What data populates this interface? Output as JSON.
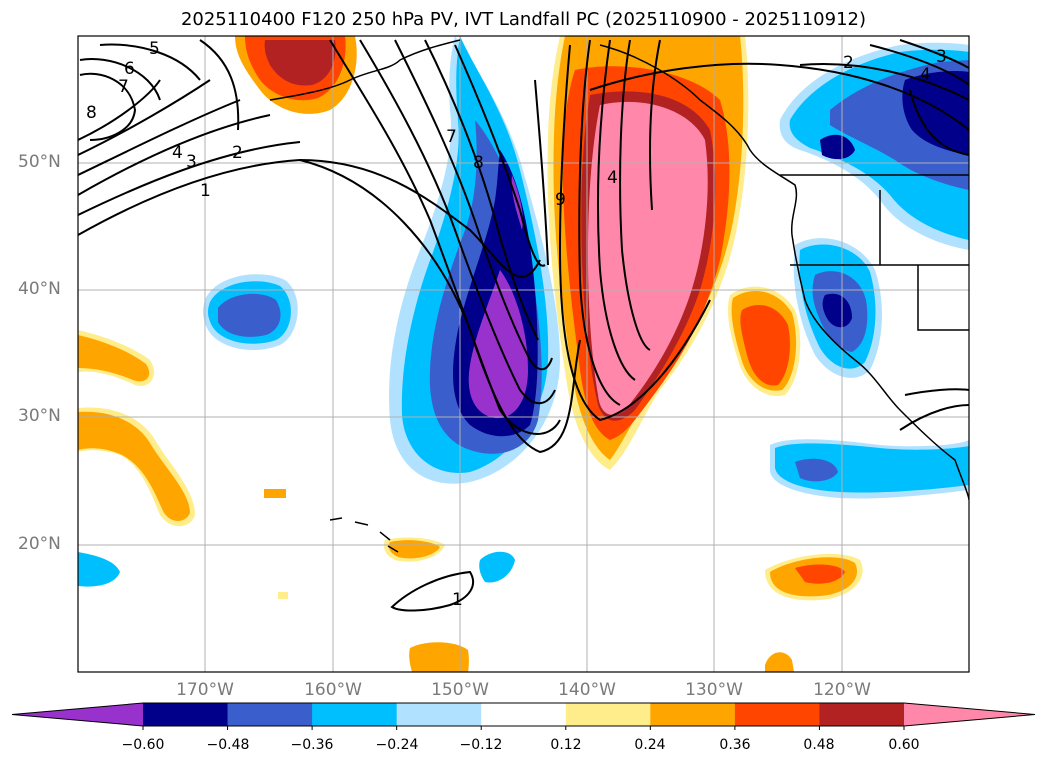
{
  "title": "2025110400 F120 250 hPa PV, IVT Landfall PC (2025110900 - 2025110912)",
  "lat_labels": [
    "50°N",
    "40°N",
    "30°N",
    "20°N"
  ],
  "lon_labels": [
    "170°W",
    "160°W",
    "150°W",
    "140°W",
    "130°W",
    "120°W"
  ],
  "contour_labels": [
    "5",
    "6",
    "7",
    "8",
    "4",
    "3",
    "2",
    "1",
    "7",
    "8",
    "9",
    "4",
    "2",
    "3",
    "4",
    "1"
  ],
  "colorbar": {
    "colors": [
      "#9932cc",
      "#00008b",
      "#3a5fcd",
      "#00bfff",
      "#b0e2ff",
      "#ffffff",
      "#ffec8b",
      "#ffa500",
      "#ff4500",
      "#b22222",
      "#ff88aa"
    ],
    "tick_labels": [
      "−0.60",
      "−0.48",
      "−0.36",
      "−0.24",
      "−0.12",
      "0.12",
      "0.24",
      "0.36",
      "0.48",
      "0.60"
    ]
  },
  "colors": {
    "purple": "#9932cc",
    "navy": "#00008b",
    "royal": "#3a5fcd",
    "sky": "#00bfff",
    "pale_blue": "#b0e2ff",
    "pale_yellow": "#ffec8b",
    "orange": "#ffa500",
    "red_orange": "#ff4500",
    "firebrick": "#b22222",
    "pink": "#ff88aa"
  }
}
